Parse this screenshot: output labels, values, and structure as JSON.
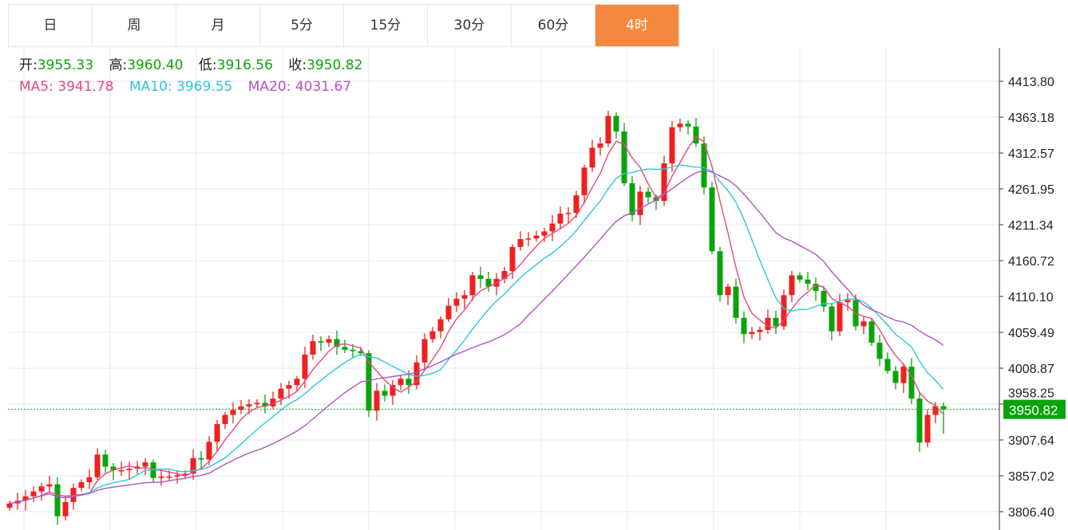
{
  "tabs": [
    {
      "label": "日",
      "active": false
    },
    {
      "label": "周",
      "active": false
    },
    {
      "label": "月",
      "active": false
    },
    {
      "label": "5分",
      "active": false
    },
    {
      "label": "15分",
      "active": false
    },
    {
      "label": "30分",
      "active": false
    },
    {
      "label": "60分",
      "active": false
    },
    {
      "label": "4时",
      "active": true
    }
  ],
  "ohlc": {
    "open_label": "开:",
    "open": "3955.33",
    "high_label": "高:",
    "high": "3960.40",
    "low_label": "低:",
    "low": "3916.56",
    "close_label": "收:",
    "close": "3950.82"
  },
  "ma": {
    "ma5_label": "MA5:",
    "ma5": "3941.78",
    "ma10_label": "MA10:",
    "ma10": "3969.55",
    "ma20_label": "MA20:",
    "ma20": "4031.67"
  },
  "colors": {
    "up": "#f02020",
    "down": "#0aa40a",
    "ma5": "#e8497b",
    "ma10": "#2ec6de",
    "ma20": "#b055c0",
    "active_tab": "#f5883f",
    "grid": "#e3ebf2"
  },
  "chart_data": {
    "type": "candlestick",
    "ylim": [
      3806.4,
      4413.8
    ],
    "y_ticks": [
      "4413.80",
      "4363.18",
      "4312.57",
      "4261.95",
      "4211.34",
      "4160.72",
      "4110.10",
      "4059.49",
      "4008.87",
      "3958.25",
      "3907.64",
      "3857.02",
      "3806.40"
    ],
    "last_price": "3950.82",
    "grid": true,
    "closes": [
      3818,
      3822,
      3828,
      3835,
      3842,
      3845,
      3800,
      3820,
      3840,
      3848,
      3855,
      3887,
      3870,
      3865,
      3865,
      3867,
      3870,
      3876,
      3854,
      3856,
      3856,
      3858,
      3860,
      3882,
      3880,
      3905,
      3930,
      3943,
      3950,
      3955,
      3958,
      3960,
      3955,
      3966,
      3980,
      3985,
      3994,
      4028,
      4047,
      4045,
      4050,
      4039,
      4035,
      4033,
      4030,
      3949,
      3977,
      3970,
      3985,
      3994,
      3985,
      4017,
      4050,
      4061,
      4078,
      4097,
      4107,
      4112,
      4140,
      4135,
      4124,
      4135,
      4146,
      4180,
      4191,
      4192,
      4196,
      4202,
      4213,
      4227,
      4228,
      4253,
      4292,
      4320,
      4326,
      4365,
      4343,
      4270,
      4225,
      4258,
      4250,
      4245,
      4298,
      4349,
      4354,
      4350,
      4326,
      4264,
      4174,
      4112,
      4124,
      4080,
      4057,
      4060,
      4063,
      4080,
      4068,
      4112,
      4140,
      4134,
      4128,
      4118,
      4096,
      4061,
      4102,
      4105,
      4068,
      4075,
      4045,
      4022,
      4005,
      3988,
      4011,
      3966,
      3904,
      3943,
      3955.33,
      3950.82
    ],
    "last_candle": {
      "open": 3955.33,
      "high": 3960.4,
      "low": 3916.56,
      "close": 3950.82
    }
  }
}
